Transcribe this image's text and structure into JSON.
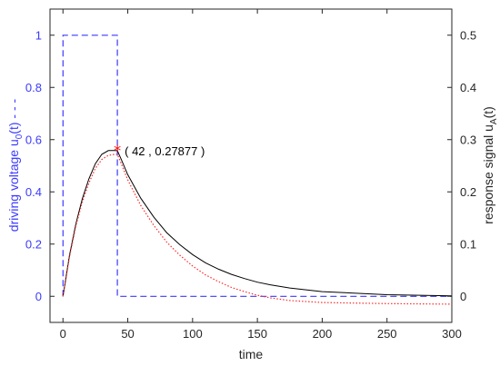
{
  "chart_data": {
    "type": "line",
    "title": "",
    "xlabel": "time",
    "ylabel_left": "driving voltage u",
    "ylabel_left_sub": "0",
    "ylabel_left_suffix": "(t)  - - -",
    "ylabel_right": "response signal u",
    "ylabel_right_sub": "A",
    "ylabel_right_suffix": "(t)",
    "xlim": [
      -10,
      300
    ],
    "ylim_left": [
      -0.1,
      1.1
    ],
    "ylim_right": [
      -0.05,
      0.55
    ],
    "xticks": [
      0,
      50,
      100,
      150,
      200,
      250,
      300
    ],
    "yticks_left": [
      0,
      0.2,
      0.4,
      0.6,
      0.8,
      1
    ],
    "yticks_right": [
      0,
      0.1,
      0.2,
      0.3,
      0.4,
      0.5
    ],
    "series": [
      {
        "axis": "left",
        "style": "dashed",
        "color": "#3a3aff",
        "x": [
          0,
          0,
          42,
          42,
          300
        ],
        "y": [
          0,
          1,
          1,
          0,
          0
        ]
      },
      {
        "axis": "right",
        "style": "solid",
        "color": "#000000",
        "x": [
          0,
          5,
          10,
          15,
          20,
          25,
          30,
          35,
          40,
          42,
          45,
          50,
          60,
          70,
          80,
          90,
          100,
          110,
          120,
          130,
          140,
          150,
          160,
          175,
          200,
          250,
          300
        ],
        "y": [
          0,
          0.078,
          0.139,
          0.187,
          0.225,
          0.254,
          0.272,
          0.279,
          0.279,
          0.2788,
          0.262,
          0.233,
          0.188,
          0.152,
          0.122,
          0.099,
          0.08,
          0.064,
          0.052,
          0.042,
          0.034,
          0.027,
          0.022,
          0.016,
          0.009,
          0.003,
          0.001
        ]
      },
      {
        "axis": "right",
        "style": "dotted",
        "color": "#ff2a2a",
        "x": [
          0,
          5,
          10,
          15,
          20,
          25,
          30,
          35,
          40,
          42,
          45,
          50,
          60,
          70,
          80,
          90,
          100,
          110,
          120,
          130,
          140,
          150,
          160,
          175,
          200,
          250,
          300
        ],
        "y": [
          0,
          0.075,
          0.135,
          0.181,
          0.217,
          0.245,
          0.262,
          0.27,
          0.272,
          0.272,
          0.254,
          0.223,
          0.174,
          0.136,
          0.104,
          0.079,
          0.058,
          0.041,
          0.028,
          0.017,
          0.009,
          0.002,
          -0.003,
          -0.008,
          -0.012,
          -0.014,
          -0.015
        ]
      }
    ],
    "annotation": {
      "marker": "*",
      "marker_color": "#ff0000",
      "x": 42,
      "y": 0.27877,
      "text": "( 42 , 0.27877 )"
    }
  }
}
